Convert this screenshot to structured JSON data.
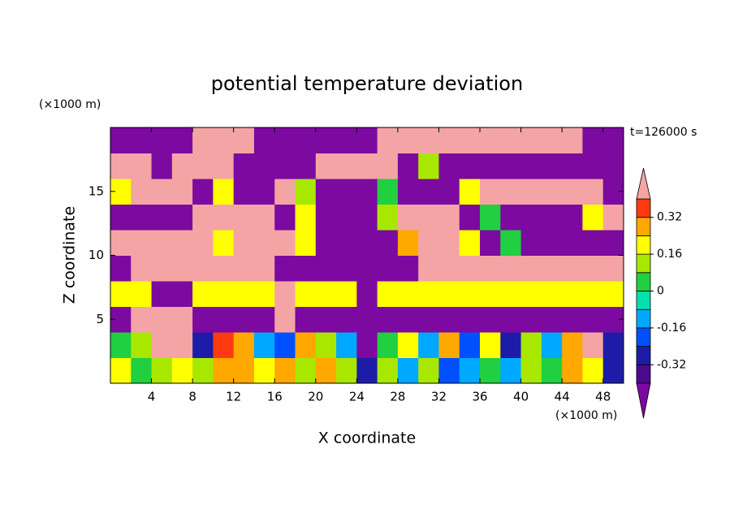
{
  "chart_data": {
    "type": "contour",
    "title": "potential temperature deviation",
    "xlabel": "X coordinate",
    "ylabel": "Z coordinate",
    "xunit": "(×1000 m)",
    "yunit": "(×1000 m)",
    "annotation": "t=126000 s",
    "xlim": [
      0,
      50
    ],
    "ylim": [
      0,
      20
    ],
    "xticks": [
      4,
      8,
      12,
      16,
      20,
      24,
      28,
      32,
      36,
      40,
      44,
      48
    ],
    "yticks": [
      5,
      10,
      15
    ],
    "x": [
      1,
      3,
      5,
      7,
      9,
      11,
      13,
      15,
      17,
      19,
      21,
      23,
      25,
      27,
      29,
      31,
      33,
      35,
      37,
      39,
      41,
      43,
      45,
      47,
      49
    ],
    "y": [
      1,
      3,
      5,
      7,
      9,
      11,
      13,
      15,
      17,
      19
    ],
    "z": [
      [
        0.2,
        0,
        0.1,
        0.2,
        0.1,
        0.3,
        0.25,
        0.2,
        0.3,
        0.1,
        0.3,
        0.1,
        -0.3,
        0.1,
        -0.1,
        0.1,
        -0.2,
        -0.1,
        0,
        -0.1,
        0.1,
        0,
        0.3,
        0.2,
        -0.3
      ],
      [
        0,
        0.1,
        0.5,
        0.5,
        -0.3,
        0.35,
        0.3,
        -0.1,
        -0.2,
        0.3,
        0.1,
        -0.1,
        -0.5,
        0,
        0.2,
        -0.1,
        0.3,
        -0.2,
        0.2,
        -0.3,
        0.1,
        -0.1,
        0.3,
        0.5,
        -0.3
      ],
      [
        -0.5,
        0.5,
        0.5,
        0.5,
        -0.5,
        -0.5,
        -0.5,
        -0.5,
        0.5,
        -0.5,
        -0.5,
        -0.5,
        -0.5,
        -0.5,
        -0.5,
        -0.5,
        -0.5,
        -0.5,
        -0.5,
        -0.5,
        -0.5,
        -0.5,
        -0.5,
        -0.5,
        -0.5
      ],
      [
        0.2,
        0.2,
        -0.5,
        -0.5,
        0.2,
        0.2,
        0.2,
        0.2,
        0.5,
        0.2,
        0.2,
        0.2,
        -0.5,
        0.2,
        0.2,
        0.2,
        0.2,
        0.2,
        0.2,
        0.2,
        0.2,
        0.2,
        0.2,
        0.2,
        0.2
      ],
      [
        -0.5,
        0.5,
        0.5,
        0.5,
        0.5,
        0.5,
        0.5,
        0.5,
        -0.5,
        -0.5,
        -0.5,
        -0.5,
        -0.5,
        -0.5,
        -0.5,
        0.5,
        0.5,
        0.5,
        0.5,
        0.5,
        0.5,
        0.5,
        0.5,
        0.5,
        0.5
      ],
      [
        0.5,
        0.5,
        0.5,
        0.5,
        0.5,
        0.2,
        0.5,
        0.5,
        0.5,
        0.2,
        -0.5,
        -0.5,
        -0.5,
        -0.5,
        0.3,
        0.5,
        0.5,
        0.2,
        -0.5,
        0,
        -0.5,
        -0.5,
        -0.5,
        -0.5,
        -0.5
      ],
      [
        -0.5,
        -0.5,
        -0.5,
        -0.5,
        0.5,
        0.5,
        0.5,
        0.5,
        -0.5,
        0.2,
        -0.5,
        -0.5,
        -0.5,
        0.1,
        0.5,
        0.5,
        0.5,
        -0.5,
        0,
        -0.5,
        -0.5,
        -0.5,
        -0.5,
        0.2,
        0.5
      ],
      [
        0.2,
        0.5,
        0.5,
        0.5,
        -0.5,
        0.2,
        -0.5,
        -0.5,
        0.5,
        0.1,
        -0.5,
        -0.5,
        -0.5,
        0,
        -0.5,
        -0.5,
        -0.5,
        0.2,
        0.5,
        0.5,
        0.5,
        0.5,
        0.5,
        0.5,
        -0.5
      ],
      [
        0.5,
        0.5,
        -0.5,
        0.5,
        0.5,
        0.5,
        -0.5,
        -0.5,
        -0.5,
        -0.5,
        0.5,
        0.5,
        0.5,
        0.5,
        -0.5,
        0.1,
        -0.5,
        -0.5,
        -0.5,
        -0.5,
        -0.5,
        -0.5,
        -0.5,
        -0.5,
        -0.5
      ],
      [
        -0.5,
        -0.5,
        -0.5,
        -0.5,
        0.5,
        0.5,
        0.5,
        -0.5,
        -0.5,
        -0.5,
        -0.5,
        -0.5,
        -0.5,
        0.5,
        0.5,
        0.5,
        0.5,
        0.5,
        0.5,
        0.5,
        0.5,
        0.5,
        0.5,
        -0.5,
        -0.5
      ]
    ],
    "levels": [
      -0.4,
      -0.32,
      -0.24,
      -0.16,
      -0.08,
      0,
      0.08,
      0.16,
      0.24,
      0.32,
      0.4
    ],
    "colors": [
      "#7c0aa0",
      "#4a0c8c",
      "#1c1ca8",
      "#0050ff",
      "#00a8ff",
      "#00e0b0",
      "#20d040",
      "#a8e800",
      "#ffff00",
      "#ffa800",
      "#ff3a10",
      "#f4a4a4"
    ],
    "cbticks": [
      -0.32,
      -0.16,
      0,
      0.16,
      0.32
    ]
  }
}
